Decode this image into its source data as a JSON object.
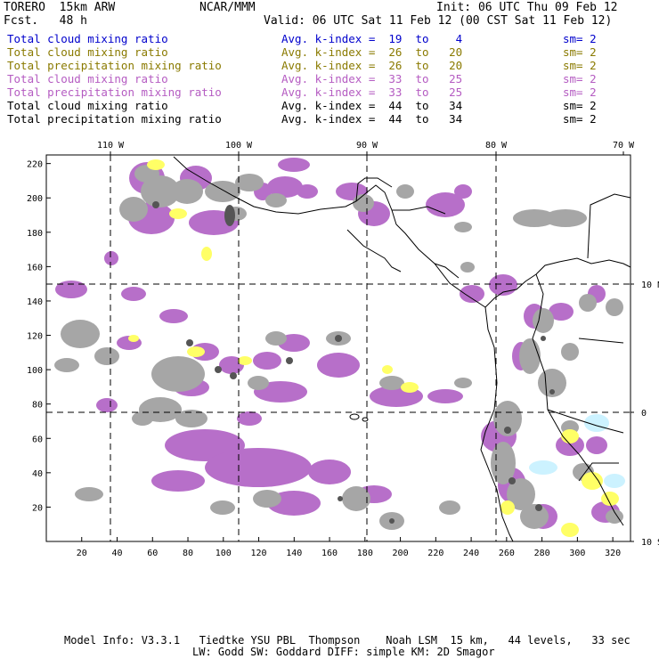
{
  "header": {
    "model": "TORERO  15km ARW",
    "org": "NCAR/MMM",
    "init": "Init: 06 UTC Thu 09 Feb 12",
    "fcst": "Fcst.   48 h",
    "valid": "Valid: 06 UTC Sat 11 Feb 12 (00 CST Sat 11 Feb 12)"
  },
  "legend": [
    {
      "field": "Total cloud mixing ratio",
      "kindex": "Avg. k-index =  19  to    4",
      "sm": "sm= 2",
      "color": "#0000cc"
    },
    {
      "field": "Total cloud mixing ratio",
      "kindex": "Avg. k-index =  26  to   20",
      "sm": "sm= 2",
      "color": "#8a7a00"
    },
    {
      "field": "Total precipitation mixing ratio",
      "kindex": "Avg. k-index =  26  to   20",
      "sm": "sm= 2",
      "color": "#8a7a00"
    },
    {
      "field": "Total cloud mixing ratio",
      "kindex": "Avg. k-index =  33  to   25",
      "sm": "sm= 2",
      "color": "#b55cc2"
    },
    {
      "field": "Total precipitation mixing ratio",
      "kindex": "Avg. k-index =  33  to   25",
      "sm": "sm= 2",
      "color": "#b55cc2"
    },
    {
      "field": "Total cloud mixing ratio",
      "kindex": "Avg. k-index =  44  to   34",
      "sm": "sm= 2",
      "color": "#000000"
    },
    {
      "field": "Total precipitation mixing ratio",
      "kindex": "Avg. k-index =  44  to   34",
      "sm": "sm= 2",
      "color": "#000000"
    }
  ],
  "map": {
    "lon_labels": [
      "110 W",
      "100 W",
      "90 W",
      "80 W",
      "70 W"
    ],
    "lat_labels": [
      "10 N",
      "0",
      "10 S"
    ],
    "x_ticks": [
      "20",
      "40",
      "60",
      "80",
      "100",
      "120",
      "140",
      "160",
      "180",
      "200",
      "220",
      "240",
      "260",
      "280",
      "300",
      "320"
    ],
    "y_ticks": [
      "20",
      "40",
      "60",
      "80",
      "100",
      "120",
      "140",
      "160",
      "180",
      "200",
      "220"
    ],
    "x_range": [
      0,
      330
    ],
    "y_range": [
      0,
      225
    ],
    "colors": {
      "gray": "#a6a6a6",
      "dark": "#555555",
      "purple": "#b76fc9",
      "yellow": "#ffff66",
      "cyan": "#ccf2ff"
    }
  },
  "footer": {
    "line1": "Model Info: V3.3.1   Tiedtke YSU PBL  Thompson    Noah LSM  15 km,   44 levels,   33 sec",
    "line2": "LW: Godd SW: Goddard DIFF: simple KM: 2D Smagor"
  }
}
